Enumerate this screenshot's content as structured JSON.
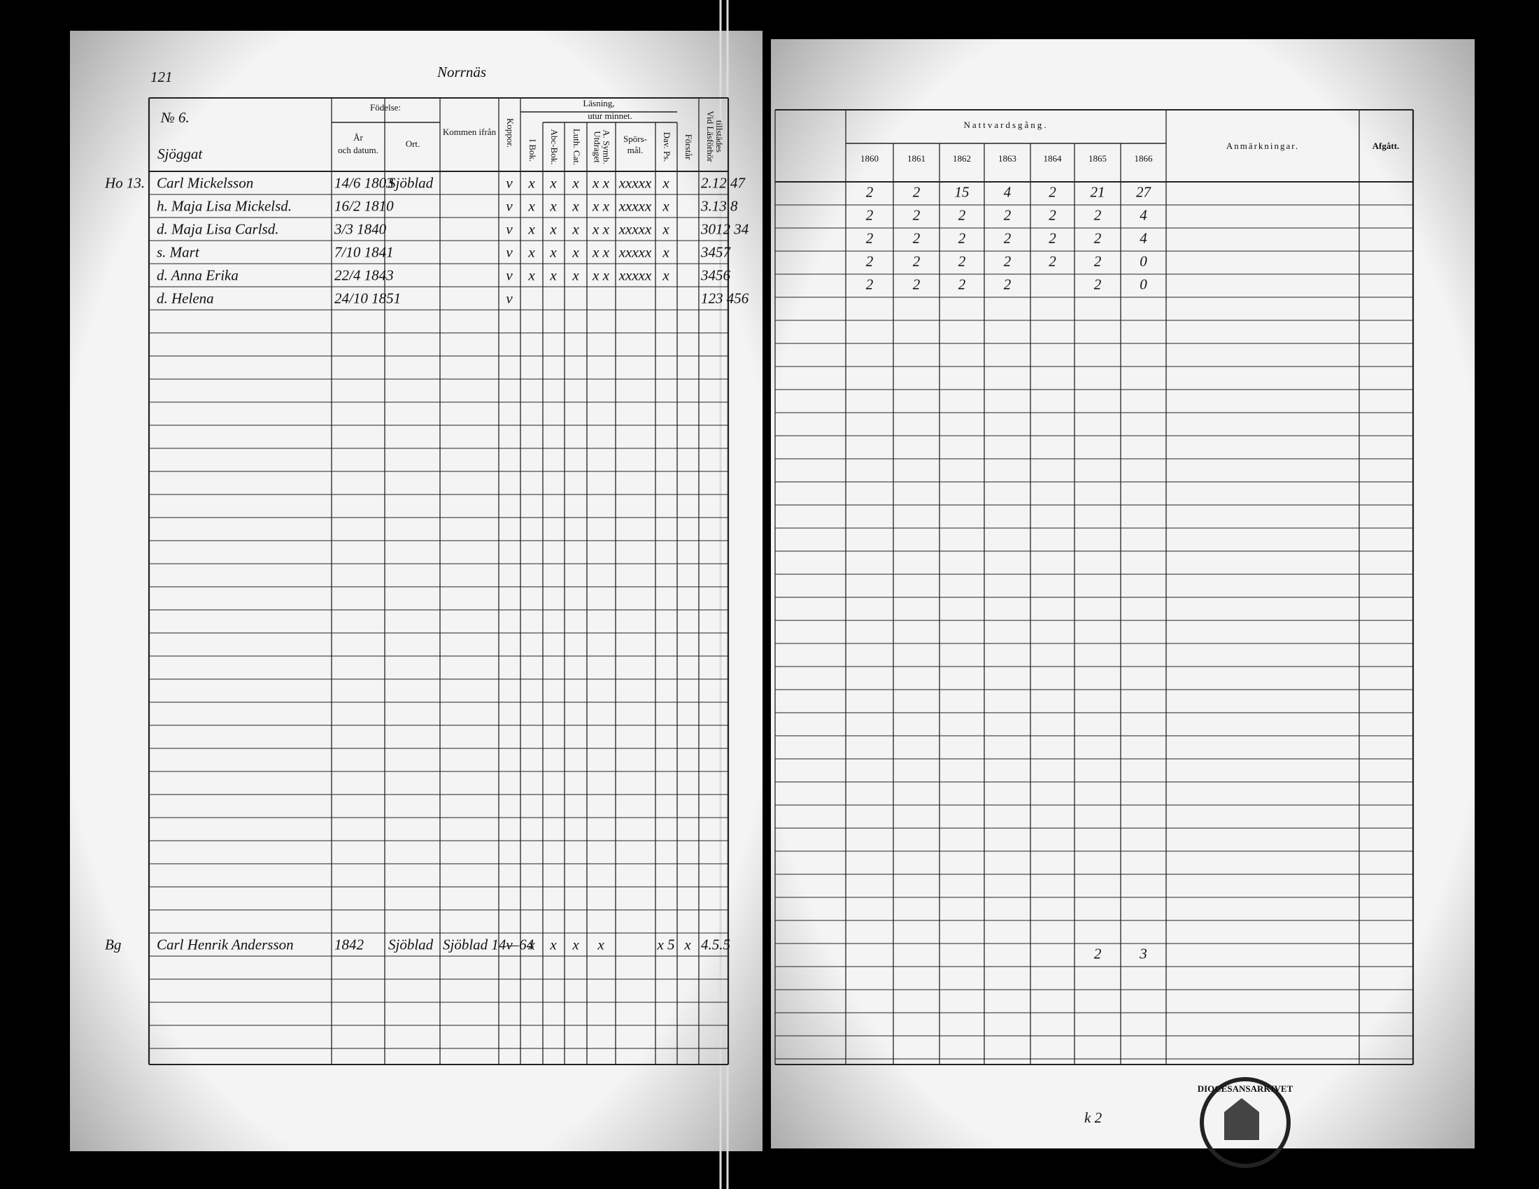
{
  "page_number": "121",
  "place": "Norrnäs",
  "left_header": {
    "household": "№ 6.",
    "farm": "Sjöggat",
    "birth": "Födelse:",
    "birth_date": [
      "År",
      "och datum."
    ],
    "birth_place": "Ort.",
    "came_from": "Kommen ifrån",
    "smallpox": "Koppor.",
    "reading": "Läsning,",
    "by_heart": "utur minnet.",
    "reading_columns": [
      [
        "I Bok."
      ],
      [
        "Abc-Bok."
      ],
      [
        "Luth. Cat."
      ],
      [
        "Utdraget",
        "A. Symb."
      ],
      [
        "Spörs-",
        "mål."
      ],
      [
        "Dav. Ps."
      ],
      [
        "Förstår"
      ]
    ],
    "present": [
      "Vid Läsförhör",
      "tillstädes"
    ]
  },
  "persons": [
    {
      "ref": "Ho 13.",
      "name": "Carl Mickelsson",
      "date": "14/6 1803",
      "place": "Sjöblad",
      "smallpox": "v",
      "reading": [
        "x",
        "x",
        "x",
        "x x",
        "xxxxx",
        "x",
        null
      ],
      "present": "2.12 47"
    },
    {
      "ref": null,
      "name": "h. Maja Lisa Mickelsd.",
      "date": "16/2 1810",
      "place": null,
      "smallpox": "v",
      "reading": [
        "x",
        "x",
        "x",
        "x x",
        "xxxxx",
        "x",
        null
      ],
      "present": "3.13 8"
    },
    {
      "ref": null,
      "name": "d. Maja Lisa Carlsd.",
      "date": "3/3 1840",
      "place": null,
      "smallpox": "v",
      "reading": [
        "x",
        "x",
        "x",
        "x x",
        "xxxxx",
        "x",
        null
      ],
      "present": "3012 34"
    },
    {
      "ref": null,
      "name": "s. Mart",
      "date": "7/10 1841",
      "place": null,
      "smallpox": "v",
      "reading": [
        "x",
        "x",
        "x",
        "x x",
        "xxxxx",
        "x",
        null
      ],
      "present": "3457"
    },
    {
      "ref": null,
      "name": "d. Anna Erika",
      "date": "22/4 1843",
      "place": null,
      "smallpox": "v",
      "reading": [
        "x",
        "x",
        "x",
        "x x",
        "xxxxx",
        "x",
        null
      ],
      "present": "3456"
    },
    {
      "ref": null,
      "name": "d. Helena",
      "date": "24/10 1851",
      "place": null,
      "smallpox": "v",
      "reading": [
        null,
        null,
        null,
        null,
        null,
        null,
        null
      ],
      "present": "123 456"
    }
  ],
  "later_entries": [
    {
      "ref": "Bg",
      "name": "Carl Henrik Andersson",
      "date": "1842",
      "place": "Sjöblad",
      "came_from": "Sjöblad 14—64",
      "smallpox": "v",
      "reading": [
        "x",
        "x",
        "x",
        "x",
        null,
        "x 5",
        "x"
      ],
      "present": "4.5.5"
    }
  ],
  "right_header": {
    "communion": "Nattvardsgång.",
    "years": [
      "1860",
      "1861",
      "1862",
      "1863",
      "1864",
      "1865",
      "1866"
    ],
    "remarks": "Anmärkningar.",
    "departed": "Afgått."
  },
  "communion": [
    [
      "2",
      "2",
      "15",
      "4",
      "2",
      "21",
      "27"
    ],
    [
      "2",
      "2",
      "2",
      "2",
      "2",
      "2",
      "4"
    ],
    [
      "2",
      "2",
      "2",
      "2",
      "2",
      "2",
      "4"
    ],
    [
      "2",
      "2",
      "2",
      "2",
      "2",
      "2",
      "0"
    ],
    [
      "2",
      "2",
      "2",
      "2",
      null,
      "2",
      "0"
    ]
  ],
  "later_communion": [
    [
      null,
      null,
      null,
      null,
      null,
      "2",
      "3"
    ]
  ],
  "footer": "k 2",
  "stamp": "DIOCESANSARKIVET"
}
